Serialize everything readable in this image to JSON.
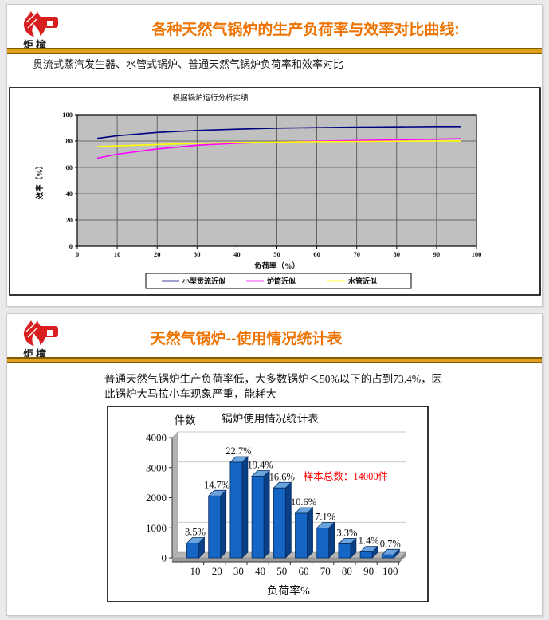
{
  "theme": {
    "page_bg": "#eaeaec",
    "title_color": "#ee7300",
    "rule_gold": "#e2a01e",
    "rule_edge": "#7e5c00",
    "logo_red": "#d81e1e"
  },
  "slide1": {
    "logo_text": "炬橦",
    "title": "各种天然气锅炉的生产负荷率与效率对比曲线:",
    "subtitle": "贯流式蒸汽发生器、水管式锅炉、普通天然气锅炉负荷率和效率对比"
  },
  "slide2": {
    "logo_text": "炬橦",
    "title": "天然气锅炉--使用情况统计表",
    "paragraph": "普通天然气锅炉生产负荷率低，大多数锅炉＜50%以下的占到73.4%，因此锅炉大马拉小车现象严重，能耗大"
  },
  "chart_data": [
    {
      "type": "line",
      "title": "根据锅炉运行分析实绩",
      "xlabel": "负荷率（%）",
      "ylabel": "效率（%）",
      "xlim": [
        0,
        100
      ],
      "ylim": [
        0,
        100
      ],
      "x_ticks": [
        0,
        10,
        20,
        30,
        40,
        50,
        60,
        70,
        80,
        90,
        100
      ],
      "y_ticks": [
        0,
        20,
        40,
        60,
        80,
        100
      ],
      "plot_bg": "#c0c0c0",
      "grid": "on",
      "legend_position": "bottom",
      "series": [
        {
          "name": "小型贯流近似",
          "color": "#000080",
          "x": [
            5,
            10,
            20,
            30,
            40,
            50,
            60,
            70,
            80,
            90,
            96
          ],
          "y": [
            82,
            84,
            86.5,
            88,
            89,
            89.8,
            90.2,
            90.6,
            90.8,
            91,
            91
          ]
        },
        {
          "name": "炉筒近似",
          "color": "#ff00ff",
          "x": [
            5,
            10,
            20,
            30,
            40,
            50,
            60,
            70,
            80,
            90,
            96
          ],
          "y": [
            67,
            70,
            74,
            76.8,
            78.3,
            79.2,
            79.9,
            80.4,
            80.9,
            81.4,
            81.8
          ]
        },
        {
          "name": "水管近似",
          "color": "#ffff00",
          "x": [
            5,
            10,
            20,
            30,
            40,
            50,
            60,
            70,
            80,
            90,
            96
          ],
          "y": [
            75.8,
            76.3,
            77.3,
            78.2,
            78.8,
            79.2,
            79.5,
            79.7,
            79.9,
            80,
            80
          ]
        }
      ]
    },
    {
      "type": "bar",
      "title": "锅炉使用情况统计表",
      "xlabel": "负荷率%",
      "ylabel": "件数",
      "categories": [
        "10",
        "20",
        "30",
        "40",
        "50",
        "60",
        "70",
        "80",
        "90",
        "100"
      ],
      "values": [
        490,
        2058,
        3178,
        2716,
        2324,
        1484,
        994,
        462,
        196,
        98
      ],
      "labels": [
        "3.5%",
        "14.7%",
        "22.7%",
        "19.4%",
        "16.6%",
        "10.6%",
        "7.1%",
        "3.3%",
        "1.4%",
        "0.7%"
      ],
      "annotation": "样本总数：14000件",
      "annotation_color": "#fe0000",
      "ylim": [
        0,
        4000
      ],
      "y_ticks": [
        0,
        1000,
        2000,
        3000,
        4000
      ],
      "bar_color": "#1565c4",
      "bar_side": "#0a3f85",
      "bar_top": "#6ba3dd",
      "bar_edge": "#062c60",
      "grid": "on"
    }
  ]
}
